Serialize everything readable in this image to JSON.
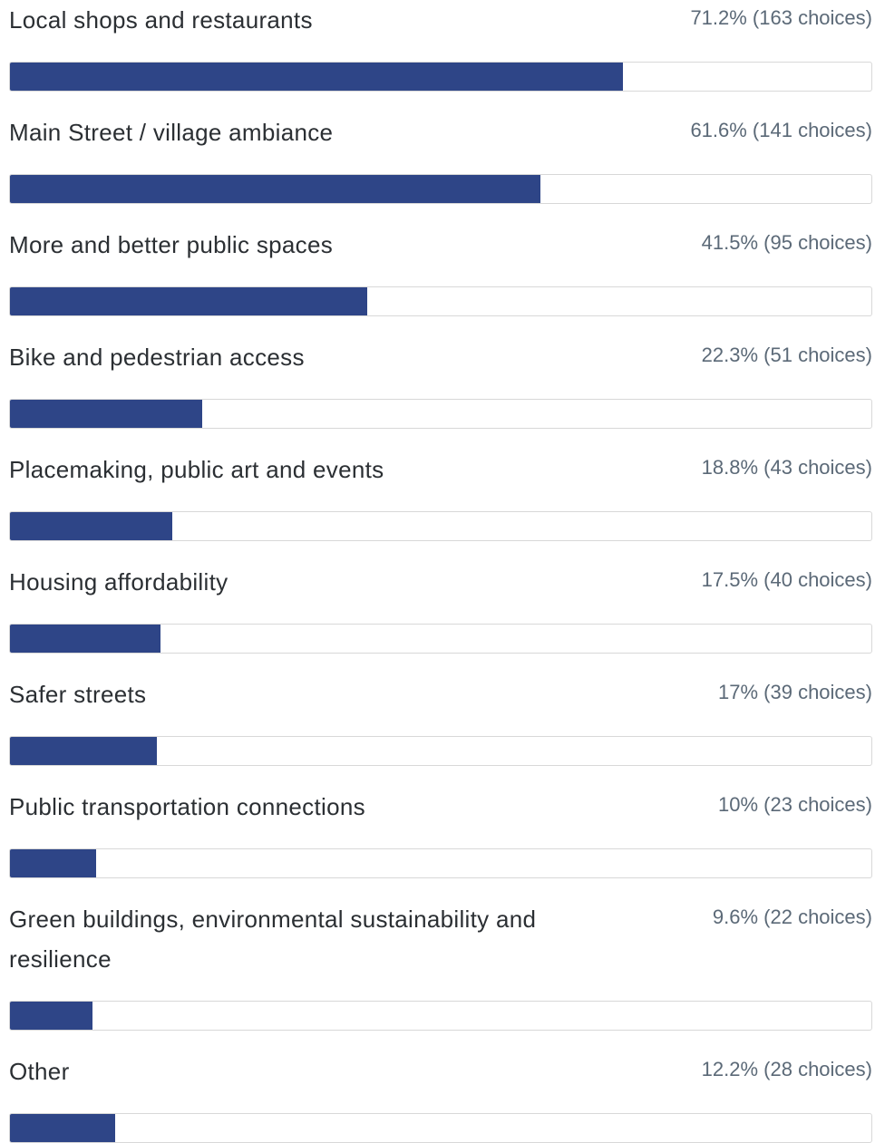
{
  "chart_data": {
    "type": "bar",
    "orientation": "horizontal",
    "categories": [
      "Local shops and restaurants",
      "Main Street / village ambiance",
      "More and better public spaces",
      "Bike and pedestrian access",
      "Placemaking, public art and events",
      "Housing affordability",
      "Safer streets",
      "Public transportation connections",
      "Green buildings, environmental sustainability and resilience",
      "Other"
    ],
    "values": [
      71.2,
      61.6,
      41.5,
      22.3,
      18.8,
      17.5,
      17,
      10,
      9.6,
      12.2
    ],
    "value_labels": [
      "71.2% (163 choices)",
      "61.6% (141 choices)",
      "41.5% (95 choices)",
      "22.3% (51 choices)",
      "18.8% (43 choices)",
      "17.5% (40 choices)",
      "17% (39 choices)",
      "10% (23 choices)",
      "9.6% (22 choices)",
      "12.2% (28 choices)"
    ],
    "xlim": [
      0,
      100
    ],
    "color": "#2e4587"
  }
}
